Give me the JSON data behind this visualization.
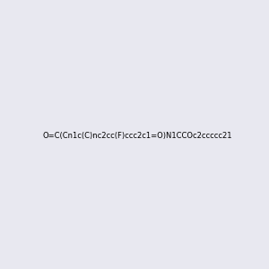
{
  "smiles": "O=C(Cn1c(C)nc2cc(F)ccc2c1=O)N1CCOc2ccccc21",
  "image_size": 300,
  "background_color": "#e8e8f0"
}
